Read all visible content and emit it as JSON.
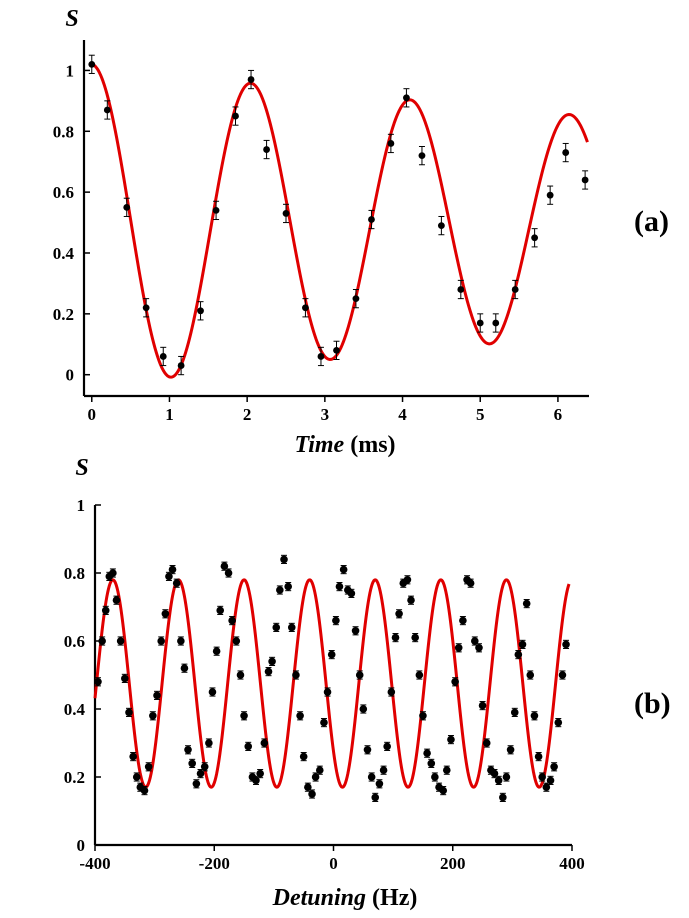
{
  "chart_data": [
    {
      "type": "scatter",
      "panel_label": "(a)",
      "ylabel": "S",
      "xlabel_italic": "Time",
      "xlabel_unit": " (ms)",
      "xlim": [
        -0.1,
        6.4
      ],
      "ylim": [
        -0.07,
        1.1
      ],
      "xticks": [
        0,
        1,
        2,
        3,
        4,
        5,
        6
      ],
      "xtick_labels": [
        "0",
        "1",
        "2",
        "3",
        "4",
        "5",
        "6"
      ],
      "yticks": [
        0,
        0.2,
        0.4,
        0.6,
        0.8,
        1
      ],
      "ytick_labels": [
        "0",
        "0.2",
        "0.4",
        "0.6",
        "0.8",
        "1"
      ],
      "fit": {
        "A": 0.53,
        "B": 0.49,
        "tau": 16.5,
        "period": 2.05
      },
      "colors": {
        "fit": "#e00000",
        "points": "#000000"
      },
      "series": [
        {
          "name": "data",
          "x": [
            0.0,
            0.2,
            0.45,
            0.7,
            0.92,
            1.15,
            1.4,
            1.6,
            1.85,
            2.05,
            2.25,
            2.5,
            2.75,
            2.95,
            3.15,
            3.4,
            3.6,
            3.85,
            4.05,
            4.25,
            4.5,
            4.75,
            5.0,
            5.2,
            5.45,
            5.7,
            5.9,
            6.1,
            6.35
          ],
          "y": [
            1.02,
            0.87,
            0.55,
            0.22,
            0.06,
            0.03,
            0.21,
            0.54,
            0.85,
            0.97,
            0.74,
            0.53,
            0.22,
            0.06,
            0.08,
            0.25,
            0.51,
            0.76,
            0.91,
            0.72,
            0.49,
            0.28,
            0.17,
            0.17,
            0.28,
            0.45,
            0.59,
            0.73,
            0.64
          ],
          "err": [
            0.03,
            0.03,
            0.03,
            0.03,
            0.03,
            0.03,
            0.03,
            0.03,
            0.03,
            0.03,
            0.03,
            0.03,
            0.03,
            0.03,
            0.03,
            0.03,
            0.03,
            0.03,
            0.03,
            0.03,
            0.03,
            0.03,
            0.03,
            0.03,
            0.03,
            0.03,
            0.03,
            0.03,
            0.03
          ]
        }
      ]
    },
    {
      "type": "scatter",
      "panel_label": "(b)",
      "ylabel": "S",
      "xlabel_italic": "Detuning",
      "xlabel_unit": " (Hz)",
      "xlim": [
        -400,
        400
      ],
      "ylim": [
        0,
        1
      ],
      "xticks": [
        -400,
        -200,
        0,
        200,
        400
      ],
      "xtick_labels": [
        "-400",
        "-200",
        "0",
        "200",
        "400"
      ],
      "yticks": [
        0,
        0.2,
        0.4,
        0.6,
        0.8,
        1
      ],
      "ytick_labels": [
        "0",
        "0.2",
        "0.4",
        "0.6",
        "0.8",
        "1"
      ],
      "fit": {
        "center": 0.475,
        "amplitude": 0.305,
        "period": 110,
        "phase_x": -370,
        "x_range": [
          -400,
          395
        ]
      },
      "colors": {
        "fit": "#e00000",
        "points": "#000000"
      },
      "series": [
        {
          "name": "data",
          "x": [
            -395,
            -388,
            -382,
            -376,
            -370,
            -364,
            -357,
            -350,
            -343,
            -336,
            -330,
            -324,
            -317,
            -310,
            -303,
            -296,
            -289,
            -282,
            -276,
            -270,
            -263,
            -256,
            -250,
            -244,
            -237,
            -230,
            -223,
            -216,
            -209,
            -203,
            -196,
            -190,
            -183,
            -176,
            -170,
            -163,
            -156,
            -150,
            -143,
            -136,
            -130,
            -123,
            -116,
            -109,
            -103,
            -96,
            -90,
            -83,
            -76,
            -70,
            -63,
            -56,
            -50,
            -43,
            -36,
            -30,
            -23,
            -16,
            -10,
            -3,
            4,
            10,
            17,
            24,
            30,
            37,
            44,
            50,
            57,
            64,
            70,
            77,
            84,
            90,
            97,
            104,
            110,
            117,
            124,
            130,
            137,
            144,
            150,
            157,
            164,
            170,
            177,
            184,
            190,
            197,
            204,
            210,
            217,
            224,
            230,
            237,
            244,
            250,
            257,
            264,
            270,
            277,
            284,
            290,
            297,
            304,
            310,
            317,
            324,
            330,
            337,
            344,
            350,
            357,
            364,
            370,
            377,
            384,
            390
          ],
          "y": [
            0.48,
            0.6,
            0.69,
            0.79,
            0.8,
            0.72,
            0.6,
            0.49,
            0.39,
            0.26,
            0.2,
            0.17,
            0.16,
            0.23,
            0.38,
            0.44,
            0.6,
            0.68,
            0.79,
            0.81,
            0.77,
            0.6,
            0.52,
            0.28,
            0.24,
            0.18,
            0.21,
            0.23,
            0.3,
            0.45,
            0.57,
            0.69,
            0.82,
            0.8,
            0.66,
            0.6,
            0.5,
            0.38,
            0.29,
            0.2,
            0.19,
            0.21,
            0.3,
            0.51,
            0.54,
            0.64,
            0.75,
            0.84,
            0.76,
            0.64,
            0.5,
            0.38,
            0.26,
            0.17,
            0.15,
            0.2,
            0.22,
            0.36,
            0.45,
            0.56,
            0.66,
            0.76,
            0.81,
            0.75,
            0.74,
            0.63,
            0.5,
            0.4,
            0.28,
            0.2,
            0.14,
            0.18,
            0.22,
            0.29,
            0.45,
            0.61,
            0.68,
            0.77,
            0.78,
            0.72,
            0.61,
            0.5,
            0.38,
            0.27,
            0.24,
            0.2,
            0.17,
            0.16,
            0.22,
            0.31,
            0.48,
            0.58,
            0.66,
            0.78,
            0.77,
            0.6,
            0.58,
            0.41,
            0.3,
            0.22,
            0.21,
            0.19,
            0.14,
            0.2,
            0.28,
            0.39,
            0.56,
            0.59,
            0.71,
            0.5,
            0.38,
            0.26,
            0.2,
            0.17,
            0.19,
            0.23,
            0.36,
            0.5,
            0.59
          ],
          "err": [
            0.012
          ]
        }
      ]
    }
  ]
}
